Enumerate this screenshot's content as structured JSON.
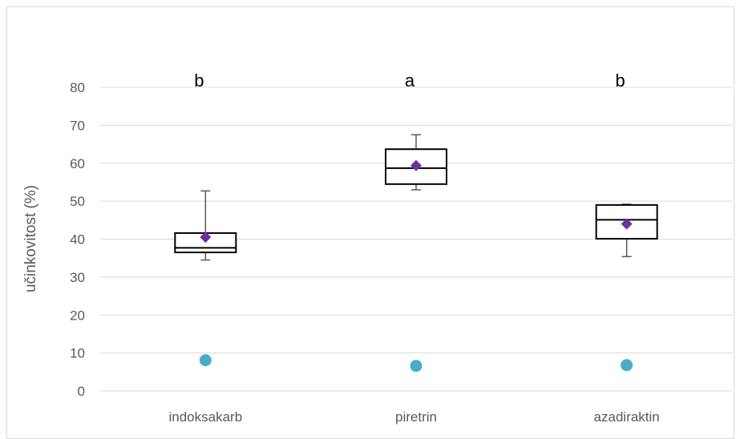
{
  "chart_data": {
    "type": "box",
    "ylabel": "učinkovitost (%)",
    "ylim": [
      0,
      80
    ],
    "yticks": [
      "0",
      "10",
      "20",
      "30",
      "40",
      "50",
      "60",
      "70",
      "80"
    ],
    "ytick_values": [
      0,
      10,
      20,
      30,
      40,
      50,
      60,
      70,
      80
    ],
    "grid": true,
    "categories": [
      "indoksakarb",
      "piretrin",
      "azadiraktin"
    ],
    "boxes": [
      {
        "category": "indoksakarb",
        "min": 34.5,
        "q1": 36.5,
        "median": 37.7,
        "q3": 41.6,
        "max": 52.7,
        "mean": 40.5,
        "outlier": 8.1,
        "letter": "b"
      },
      {
        "category": "piretrin",
        "min": 53.0,
        "q1": 54.5,
        "median": 58.7,
        "q3": 63.7,
        "max": 67.5,
        "mean": 59.4,
        "outlier": 6.6,
        "letter": "a"
      },
      {
        "category": "azadiraktin",
        "min": 35.4,
        "q1": 40.1,
        "median": 45.1,
        "q3": 49.0,
        "max": 49.2,
        "mean": 44.0,
        "outlier": 6.8,
        "letter": "b"
      }
    ],
    "colors": {
      "mean_marker": "#7030a0",
      "outlier_marker": "#4bacc6",
      "box_stroke": "#000000",
      "whisker": "#595959",
      "grid": "#d9d9d9"
    }
  }
}
